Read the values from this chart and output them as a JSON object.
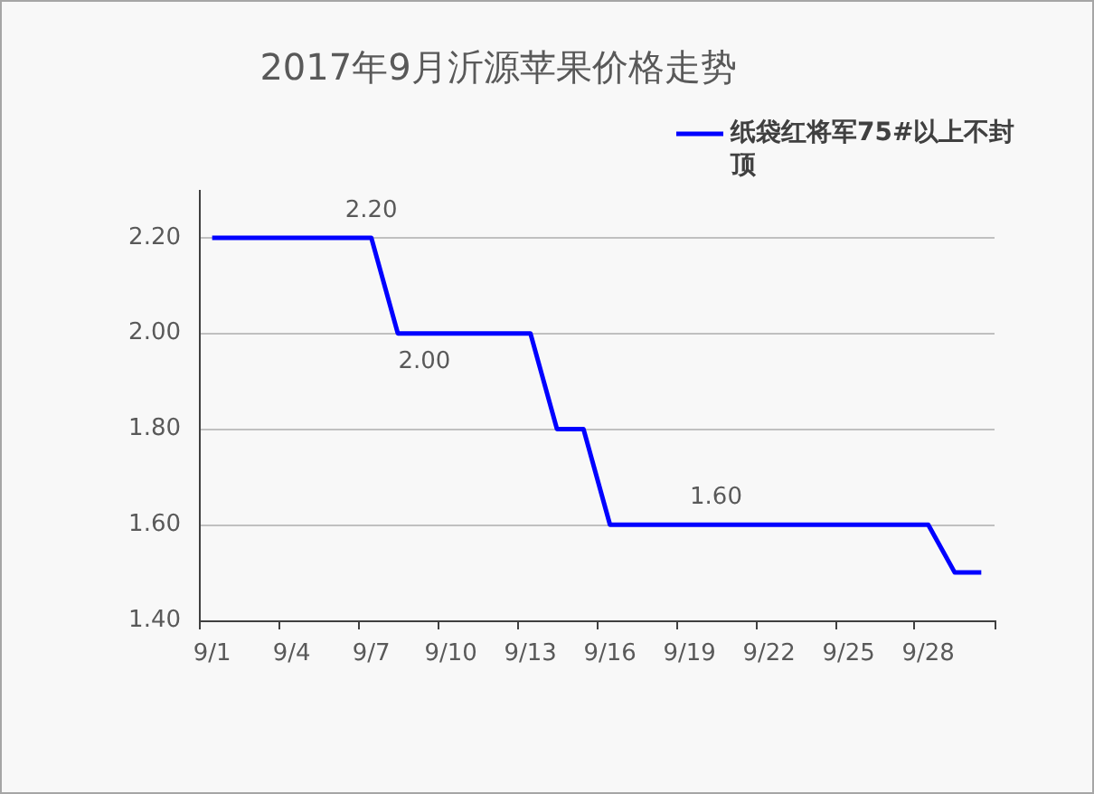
{
  "chart_data": {
    "type": "line",
    "title": "2017年9月沂源苹果价格走势",
    "categories": [
      "9/1",
      null,
      null,
      "9/4",
      null,
      null,
      "9/7",
      null,
      null,
      "9/10",
      null,
      null,
      "9/13",
      null,
      null,
      "9/16",
      null,
      null,
      "9/19",
      null,
      null,
      "9/22",
      null,
      null,
      "9/25",
      null,
      null,
      "9/28",
      null,
      null
    ],
    "series": [
      {
        "name": "纸袋红将军75#以上不封顶",
        "color": "#0000ff",
        "values": [
          2.2,
          2.2,
          2.2,
          2.2,
          2.2,
          2.2,
          2.2,
          2.0,
          2.0,
          2.0,
          2.0,
          2.0,
          2.0,
          1.8,
          1.8,
          1.6,
          1.6,
          1.6,
          1.6,
          1.6,
          1.6,
          1.6,
          1.6,
          1.6,
          1.6,
          1.6,
          1.6,
          1.6,
          1.5,
          1.5
        ],
        "value_labels": [
          null,
          null,
          null,
          null,
          null,
          null,
          "2.20",
          null,
          "2.00",
          null,
          null,
          null,
          null,
          null,
          null,
          null,
          null,
          null,
          null,
          "1.60",
          null,
          null,
          null,
          null,
          null,
          null,
          null,
          null,
          null,
          null
        ]
      }
    ],
    "ylim": [
      1.4,
      2.3
    ],
    "yticks": [
      {
        "value": 1.4,
        "label": "1.40"
      },
      {
        "value": 1.6,
        "label": "1.60"
      },
      {
        "value": 1.8,
        "label": "1.80"
      },
      {
        "value": 2.0,
        "label": "2.00"
      },
      {
        "value": 2.2,
        "label": "2.20"
      }
    ],
    "grid": "y",
    "legend": "top right",
    "marker": "none",
    "line_style": "solid"
  }
}
